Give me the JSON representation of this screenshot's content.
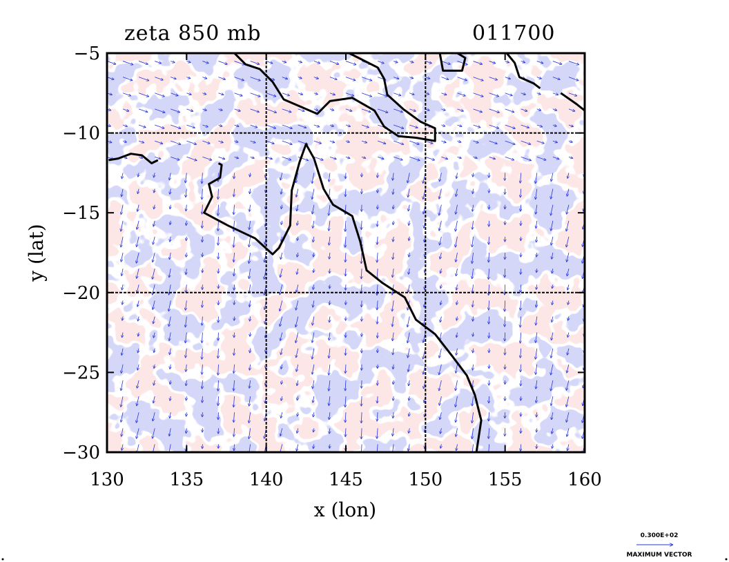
{
  "title": {
    "field": "zeta 850 mb",
    "time": "011700"
  },
  "axes": {
    "xlabel": "x (lon)",
    "ylabel": "y (lat)",
    "x_ticks": [
      "130",
      "135",
      "140",
      "145",
      "150",
      "155",
      "160"
    ],
    "y_ticks": [
      "−5",
      "−10",
      "−15",
      "−20",
      "−25",
      "−30"
    ]
  },
  "vector_legend": {
    "magnitude": "0.300E+02",
    "label": "MAXIMUM VECTOR"
  },
  "colors": {
    "positive_fill": "#f9c9c9",
    "positive_contour": "#ee1111",
    "negative_fill": "#a9aef0",
    "negative_contour": "#1111dd",
    "coastline": "#000000",
    "vectors": "#2233dd"
  },
  "chart_data": {
    "type": "map",
    "field": "relative vorticity (zeta) at 850 mb with wind vectors",
    "xlim": [
      130,
      160
    ],
    "ylim": [
      -30,
      -5
    ],
    "grid_lines": {
      "lon": [
        140,
        150
      ],
      "lat": [
        -10,
        -20
      ],
      "style": "dashed"
    },
    "legend_placement": "bottom-right",
    "coastline": [
      [
        [
          -11.9,
          137.0
        ],
        [
          -12.0,
          137.2
        ],
        [
          -12.8,
          137.1
        ],
        [
          -13.2,
          136.4
        ],
        [
          -14.0,
          136.6
        ],
        [
          -15.0,
          136.1
        ],
        [
          -15.8,
          137.6
        ],
        [
          -16.6,
          139.3
        ],
        [
          -17.6,
          140.4
        ],
        [
          -17.2,
          140.8
        ],
        [
          -15.8,
          141.5
        ],
        [
          -13.6,
          141.6
        ],
        [
          -11.8,
          142.1
        ],
        [
          -10.7,
          142.5
        ],
        [
          -11.6,
          143.0
        ],
        [
          -13.5,
          143.6
        ],
        [
          -14.5,
          144.2
        ],
        [
          -15.2,
          145.4
        ],
        [
          -16.8,
          145.9
        ],
        [
          -18.6,
          146.3
        ],
        [
          -19.4,
          147.3
        ],
        [
          -20.3,
          148.7
        ],
        [
          -21.7,
          149.4
        ],
        [
          -22.6,
          150.6
        ],
        [
          -24.0,
          151.7
        ],
        [
          -25.2,
          152.6
        ],
        [
          -26.4,
          153.1
        ],
        [
          -28.0,
          153.5
        ],
        [
          -30.0,
          153.2
        ]
      ],
      [
        [
          -5.0,
          138.0
        ],
        [
          -5.7,
          138.7
        ],
        [
          -6.0,
          139.6
        ],
        [
          -6.8,
          140.4
        ],
        [
          -7.9,
          141.1
        ],
        [
          -8.8,
          143.2
        ],
        [
          -8.0,
          144.0
        ],
        [
          -7.8,
          145.4
        ],
        [
          -8.6,
          146.8
        ],
        [
          -9.6,
          147.4
        ],
        [
          -10.2,
          148.3
        ],
        [
          -10.3,
          149.4
        ],
        [
          -10.5,
          150.6
        ],
        [
          -9.7,
          150.6
        ],
        [
          -9.3,
          149.7
        ],
        [
          -8.5,
          148.6
        ],
        [
          -7.6,
          147.6
        ],
        [
          -6.6,
          147.4
        ],
        [
          -5.9,
          147.0
        ],
        [
          -5.3,
          145.8
        ],
        [
          -5.0,
          145.2
        ]
      ],
      [
        [
          -5.0,
          150.9
        ],
        [
          -6.1,
          151.1
        ],
        [
          -6.1,
          152.3
        ],
        [
          -5.3,
          152.5
        ],
        [
          -5.0,
          152.0
        ]
      ],
      [
        [
          -5.0,
          155.1
        ],
        [
          -5.6,
          155.6
        ],
        [
          -6.5,
          155.9
        ],
        [
          -6.9,
          156.8
        ],
        [
          -7.2,
          157.2
        ]
      ],
      [
        [
          -7.5,
          158.5
        ],
        [
          -8.2,
          159.5
        ],
        [
          -8.6,
          160.0
        ]
      ],
      [
        [
          -11.7,
          130.1
        ],
        [
          -11.6,
          130.7
        ],
        [
          -11.3,
          131.5
        ],
        [
          -11.4,
          132.2
        ],
        [
          -11.9,
          132.8
        ],
        [
          -11.7,
          133.2
        ]
      ]
    ]
  }
}
